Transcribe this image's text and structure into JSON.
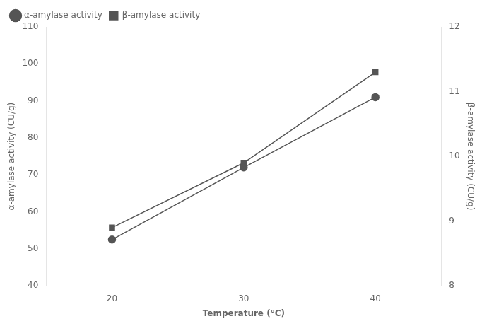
{
  "chart_data": {
    "type": "line",
    "x": [
      20,
      30,
      40
    ],
    "series": [
      {
        "name": "α-amylase activity",
        "color": "#555555",
        "marker": "circle",
        "values": [
          52.5,
          72.0,
          91.0
        ]
      },
      {
        "name": "β-amylase activity",
        "color": "#555555",
        "marker": "square",
        "values": [
          8.9,
          9.9,
          11.3
        ],
        "axis": "y2"
      }
    ],
    "xlabel": "Temperature (°C)",
    "ylabel": "α-amylase activity (CU/g)",
    "y2label": "β-amylase activity (CU/g)",
    "xlim": [
      15,
      45
    ],
    "xticks": [
      20,
      30,
      40
    ],
    "ylim": [
      40,
      110
    ],
    "yticks": [
      40,
      50,
      60,
      70,
      80,
      90,
      100,
      110
    ],
    "y2lim": [
      8,
      12
    ],
    "y2ticks": [
      8,
      9,
      10,
      11,
      12
    ],
    "grid": false,
    "legend": "upper left"
  }
}
